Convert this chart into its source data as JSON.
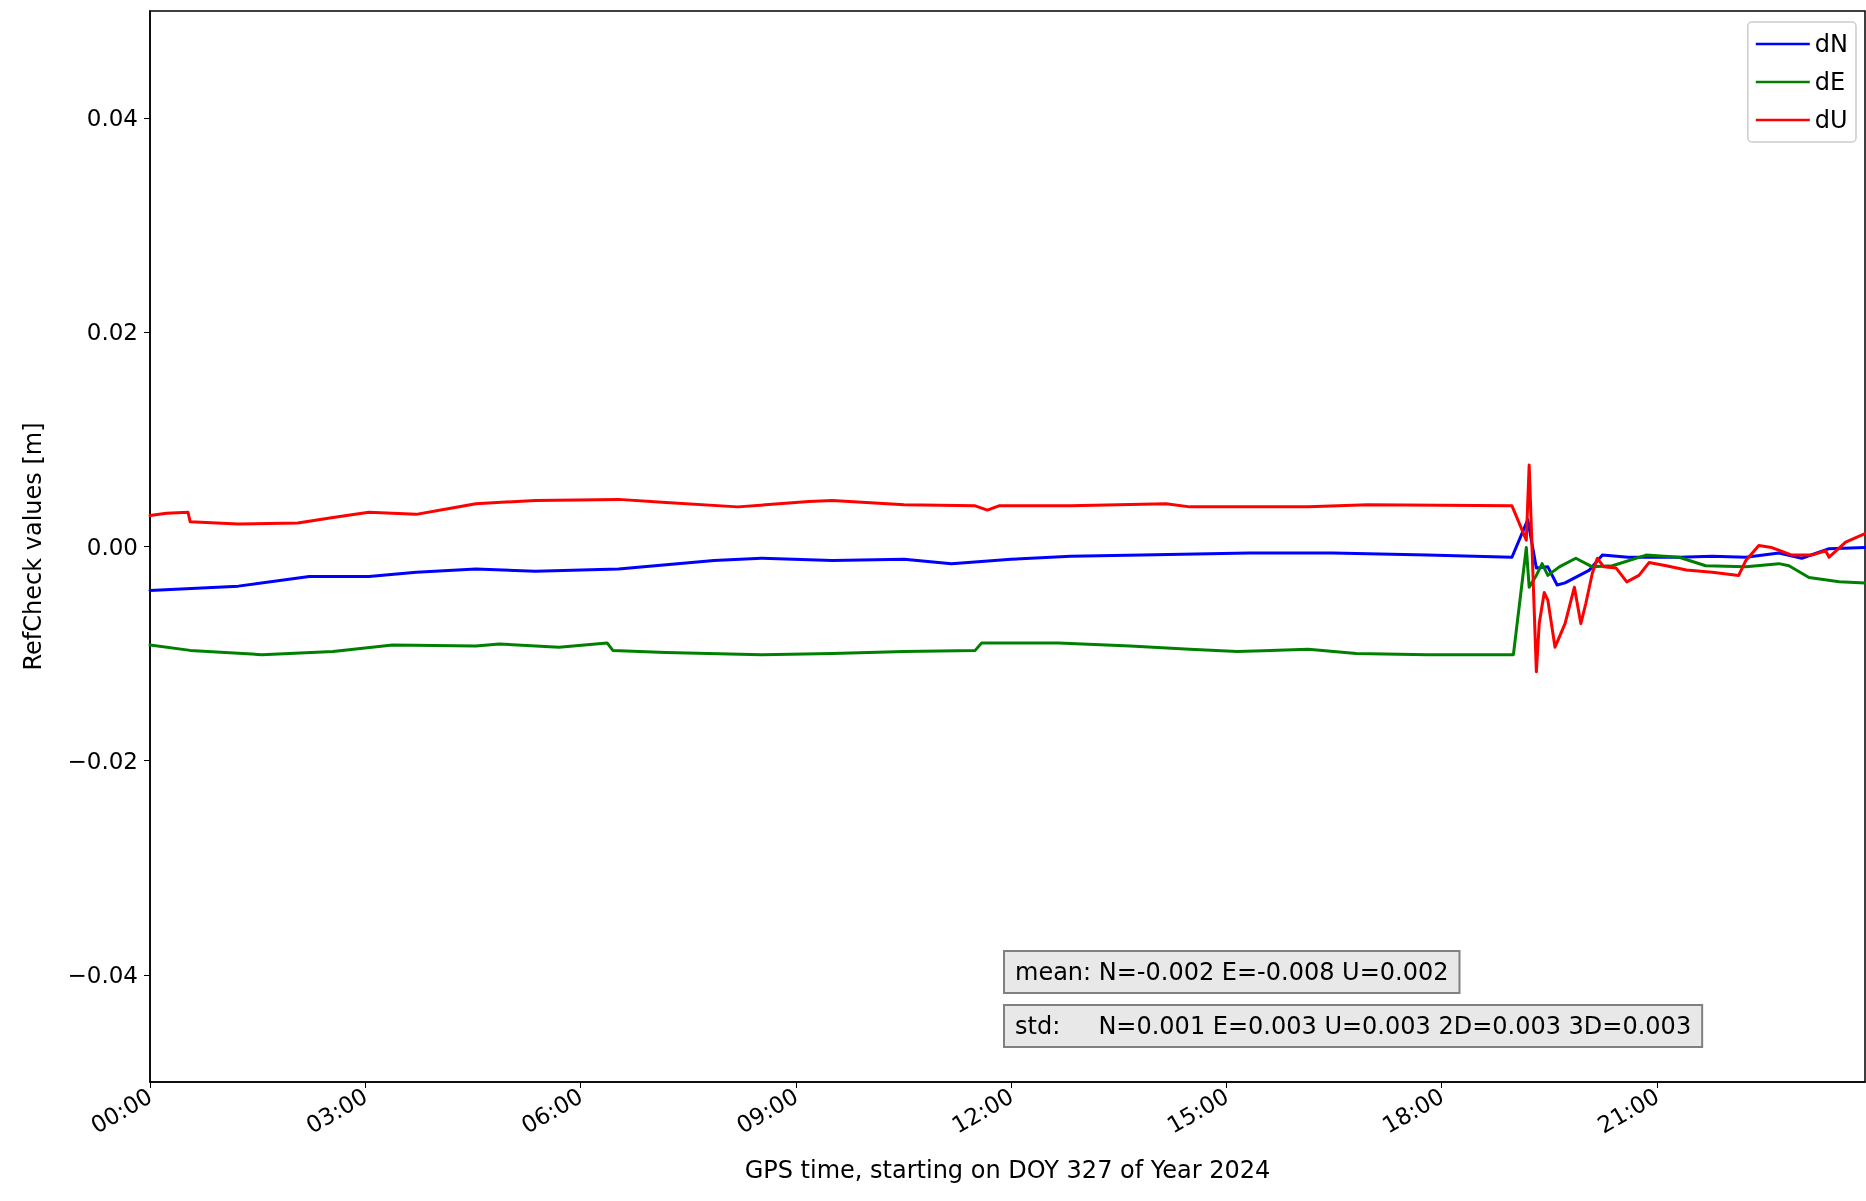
{
  "chart_data": {
    "type": "line",
    "xlabel": "GPS time, starting on DOY 327 of Year 2024",
    "ylabel": "RefCheck values [m]",
    "xlim": [
      0,
      23.9
    ],
    "ylim": [
      -0.05,
      0.05
    ],
    "xticks": [
      {
        "value": 0,
        "label": "00:00"
      },
      {
        "value": 3,
        "label": "03:00"
      },
      {
        "value": 6,
        "label": "06:00"
      },
      {
        "value": 9,
        "label": "09:00"
      },
      {
        "value": 12,
        "label": "12:00"
      },
      {
        "value": 15,
        "label": "15:00"
      },
      {
        "value": 18,
        "label": "18:00"
      },
      {
        "value": 21,
        "label": "21:00"
      }
    ],
    "yticks": [
      {
        "value": -0.04,
        "label": "−0.04"
      },
      {
        "value": -0.02,
        "label": "−0.02"
      },
      {
        "value": 0,
        "label": "0.00"
      },
      {
        "value": 0.02,
        "label": "0.02"
      },
      {
        "value": 0.04,
        "label": "0.04"
      }
    ],
    "grid": false,
    "legend": "top right",
    "marker": "none",
    "line_style": "solid",
    "annotations": [
      "mean: N=-0.002 E=-0.008 U=0.002",
      "std:     N=0.001 E=0.003 U=0.003 2D=0.003 3D=0.003"
    ],
    "series": [
      {
        "name": "dN",
        "color": "#0000ff",
        "x": [
          0,
          1.23,
          2.22,
          3.05,
          3.71,
          4.54,
          5.37,
          6.53,
          7.86,
          8.52,
          9.51,
          10.51,
          11.17,
          12.0,
          12.83,
          13.82,
          15.32,
          16.48,
          17.8,
          18.98,
          19.2,
          19.32,
          19.48,
          19.61,
          19.72,
          19.92,
          20.06,
          20.24,
          20.6,
          21.31,
          21.77,
          22.24,
          22.7,
          23.02,
          23.4,
          23.9
        ],
        "values": [
          -0.0041,
          -0.0037,
          -0.0028,
          -0.0028,
          -0.0024,
          -0.0021,
          -0.0023,
          -0.0021,
          -0.0013,
          -0.0011,
          -0.0013,
          -0.0012,
          -0.0016,
          -0.0012,
          -0.0009,
          -0.0008,
          -0.0006,
          -0.0006,
          -0.0008,
          -0.001,
          0.0025,
          -0.002,
          -0.0019,
          -0.0036,
          -0.0034,
          -0.0027,
          -0.0022,
          -0.0008,
          -0.001,
          -0.001,
          -0.0009,
          -0.001,
          -0.0006,
          -0.0011,
          -0.0002,
          -0.0001
        ]
      },
      {
        "name": "dE",
        "color": "#008000",
        "x": [
          0,
          0.56,
          1.56,
          2.55,
          3.38,
          4.54,
          4.87,
          5.7,
          6.37,
          6.45,
          7.19,
          8.52,
          9.51,
          10.51,
          11.5,
          11.59,
          12.66,
          13.66,
          14.49,
          15.15,
          16.14,
          16.81,
          17.8,
          19.0,
          19.18,
          19.22,
          19.32,
          19.4,
          19.48,
          19.64,
          19.87,
          20.1,
          20.38,
          20.85,
          21.31,
          21.68,
          22.24,
          22.7,
          22.84,
          23.12,
          23.54,
          23.9
        ],
        "values": [
          -0.0092,
          -0.0097,
          -0.0101,
          -0.0098,
          -0.0092,
          -0.0093,
          -0.0091,
          -0.0094,
          -0.009,
          -0.0097,
          -0.0099,
          -0.0101,
          -0.01,
          -0.0098,
          -0.0097,
          -0.009,
          -0.009,
          -0.0093,
          -0.0096,
          -0.0098,
          -0.0096,
          -0.01,
          -0.0101,
          -0.0101,
          -0.0001,
          -0.0038,
          -0.0027,
          -0.0016,
          -0.0027,
          -0.0019,
          -0.0011,
          -0.0019,
          -0.0018,
          -0.0008,
          -0.001,
          -0.0018,
          -0.0019,
          -0.0016,
          -0.0018,
          -0.0029,
          -0.0033,
          -0.0034
        ]
      },
      {
        "name": "dU",
        "color": "#ff0000",
        "x": [
          0,
          0.23,
          0.53,
          0.56,
          1.23,
          2.06,
          2.55,
          3.05,
          3.71,
          4.21,
          4.54,
          5.37,
          6.53,
          7.19,
          8.19,
          9.18,
          9.51,
          10.51,
          11.5,
          11.67,
          11.83,
          12.83,
          14.16,
          14.49,
          16.14,
          16.97,
          18.98,
          19.18,
          19.22,
          19.32,
          19.36,
          19.43,
          19.48,
          19.58,
          19.72,
          19.85,
          19.94,
          20.01,
          20.1,
          20.17,
          20.26,
          20.43,
          20.58,
          20.75,
          20.89,
          21.13,
          21.41,
          21.77,
          22.14,
          22.24,
          22.42,
          22.6,
          22.88,
          23.16,
          23.35,
          23.4,
          23.63,
          23.9
        ],
        "values": [
          0.0029,
          0.0031,
          0.0032,
          0.0023,
          0.0021,
          0.0022,
          0.0027,
          0.0032,
          0.003,
          0.0036,
          0.004,
          0.0043,
          0.0044,
          0.0041,
          0.0037,
          0.0042,
          0.0043,
          0.0039,
          0.0038,
          0.0034,
          0.0038,
          0.0038,
          0.004,
          0.0037,
          0.0037,
          0.0039,
          0.0038,
          0.0006,
          0.0076,
          -0.0117,
          -0.0072,
          -0.0043,
          -0.005,
          -0.0094,
          -0.0072,
          -0.0038,
          -0.0072,
          -0.0053,
          -0.0025,
          -0.0011,
          -0.0019,
          -0.002,
          -0.0033,
          -0.0027,
          -0.0015,
          -0.0018,
          -0.0022,
          -0.0024,
          -0.0027,
          -0.0013,
          0.0001,
          -0.0001,
          -0.0008,
          -0.0008,
          -0.0004,
          -0.001,
          0.0004,
          0.0012
        ]
      }
    ]
  }
}
